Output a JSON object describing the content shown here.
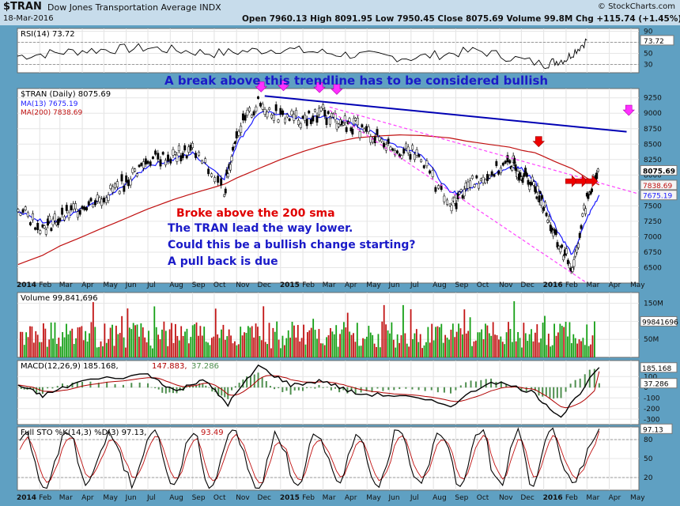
{
  "header": {
    "symbol": "$TRAN",
    "name": "Dow Jones Transportation Average INDX",
    "date": "18-Mar-2016",
    "ohlc": "Open 7960.13  High 8091.95  Low 7950.45  Close 8075.69  Volume 99.8M  Chg +115.74 (+1.45%) ▲",
    "copyright": "© StockCharts.com"
  },
  "annotations": {
    "trendline_note": "A break above this trendline has to be considered bullish",
    "sma_note": "Broke above the 200 sma",
    "lead_note": "The TRAN lead the way lower.",
    "change_note": "Could this be a bullish change starting?",
    "pullback_note": "A pull back is due"
  },
  "colors": {
    "price": "#000000",
    "ma13": "#1a1aff",
    "ma200": "#c01010",
    "trendline": "#0000b4",
    "support_lines": "#ff40ff",
    "arrows_magenta": "#ff30ff",
    "arrows_red": "#ee0000"
  },
  "chart_data": [
    {
      "type": "line",
      "panel": "RSI",
      "title": "RSI(14) 73.72",
      "last_value": 73.72,
      "ylim": [
        15,
        95
      ],
      "ticks": [
        30,
        50,
        70,
        90
      ],
      "x": [
        "2014-01",
        "2014-04",
        "2014-07",
        "2014-10",
        "2015-01",
        "2015-04",
        "2015-07",
        "2015-10",
        "2016-01",
        "2016-02",
        "2016-03"
      ],
      "values": [
        45,
        55,
        60,
        50,
        58,
        48,
        42,
        55,
        30,
        40,
        73.72
      ]
    },
    {
      "type": "line",
      "panel": "Price",
      "title": "$TRAN (Daily) 8075.69",
      "ylim": [
        6250,
        9400
      ],
      "ticks": [
        6500,
        6750,
        7000,
        7250,
        7500,
        7750,
        8000,
        8250,
        8500,
        8750,
        9000,
        9250
      ],
      "x": [
        "2014-01-02",
        "2014-02-05",
        "2014-03-01",
        "2014-04-01",
        "2014-05-01",
        "2014-06-01",
        "2014-07-01",
        "2014-08-05",
        "2014-09-01",
        "2014-10-15",
        "2014-11-01",
        "2014-12-01",
        "2015-01-01",
        "2015-02-01",
        "2015-03-01",
        "2015-03-25",
        "2015-04-15",
        "2015-05-15",
        "2015-06-15",
        "2015-07-15",
        "2015-08-24",
        "2015-09-15",
        "2015-10-15",
        "2015-11-15",
        "2015-12-01",
        "2015-12-20",
        "2016-01-01",
        "2016-01-20",
        "2016-02-10",
        "2016-03-01",
        "2016-03-18"
      ],
      "series": [
        {
          "name": "$TRAN (Daily) 8075.69",
          "values": [
            7450,
            7150,
            7300,
            7500,
            7650,
            7900,
            8250,
            8300,
            8400,
            7750,
            8700,
            9150,
            8950,
            8900,
            9000,
            8850,
            8800,
            8600,
            8400,
            8300,
            7450,
            7800,
            8000,
            8200,
            8050,
            7800,
            7500,
            6900,
            6500,
            7600,
            8075.69
          ]
        },
        {
          "name": "MA(13) 7675.19",
          "values": [
            7400,
            7250,
            7250,
            7450,
            7600,
            7850,
            8150,
            8250,
            8350,
            7950,
            8500,
            9000,
            9000,
            8900,
            8950,
            8900,
            8800,
            8650,
            8450,
            8350,
            7700,
            7750,
            7950,
            8150,
            8100,
            7900,
            7600,
            7100,
            6700,
            7300,
            7675.19
          ]
        },
        {
          "name": "MA(200) 7838.69",
          "values": [
            6550,
            6700,
            6850,
            7000,
            7150,
            7300,
            7450,
            7600,
            7700,
            7850,
            7950,
            8100,
            8250,
            8380,
            8480,
            8550,
            8600,
            8630,
            8650,
            8640,
            8600,
            8550,
            8500,
            8450,
            8400,
            8360,
            8300,
            8200,
            8100,
            7950,
            7838.69
          ]
        }
      ],
      "last_value_labels": [
        "8075.69",
        "7838.69",
        "7675.19"
      ]
    },
    {
      "type": "bar",
      "panel": "Volume",
      "title": "Volume 99,841,696",
      "last_value": 99841696,
      "value_label": "99841696",
      "ticks": [
        "50M",
        "100M",
        "150M"
      ],
      "ylim": [
        0,
        180
      ],
      "unit": "M"
    },
    {
      "type": "line",
      "panel": "MACD",
      "title": "MACD(12,26,9) 185.168, 147.883, 37.286",
      "series": [
        {
          "name": "MACD",
          "last": 185.168
        },
        {
          "name": "Signal",
          "last": 147.883
        },
        {
          "name": "Histogram",
          "last": 37.286
        }
      ],
      "ylim": [
        -350,
        250
      ],
      "ticks": [
        -300,
        -200,
        -100,
        0,
        100
      ]
    },
    {
      "type": "line",
      "panel": "Full STO",
      "title": "Full STO %K(14,3) %D(3) 97.13, 93.49",
      "series": [
        {
          "name": "%K",
          "last": 97.13
        },
        {
          "name": "%D",
          "last": 93.49
        }
      ],
      "ylim": [
        0,
        100
      ],
      "ticks": [
        20,
        50,
        80
      ],
      "last_value_label": "97.13"
    }
  ],
  "x_axis": {
    "labels": [
      "2014",
      "Feb",
      "Mar",
      "Apr",
      "May",
      "Jun",
      "Jul",
      "Aug",
      "Sep",
      "Oct",
      "Nov",
      "Dec",
      "2015",
      "Feb",
      "Mar",
      "Apr",
      "May",
      "Jun",
      "Jul",
      "Aug",
      "Sep",
      "Oct",
      "Nov",
      "Dec",
      "2016",
      "Feb",
      "Mar",
      "Apr",
      "May"
    ]
  }
}
